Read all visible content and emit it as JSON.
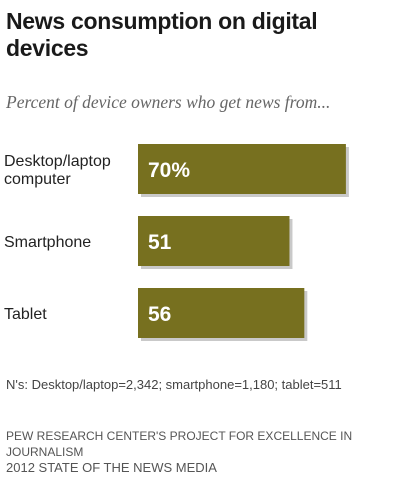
{
  "chart_data": {
    "type": "bar",
    "orientation": "horizontal",
    "title": "News consumption on digital devices",
    "subtitle": "Percent of device owners who get news from...",
    "categories": [
      "Desktop/laptop computer",
      "Smartphone",
      "Tablet"
    ],
    "category_lines": [
      [
        "Desktop/laptop",
        "computer"
      ],
      [
        "Smartphone"
      ],
      [
        "Tablet"
      ]
    ],
    "values": [
      70,
      51,
      56
    ],
    "data_labels": [
      "70%",
      "51",
      "56"
    ],
    "xlim": [
      0,
      100
    ],
    "grid": false,
    "legend": "none",
    "bar_color": "#77701f",
    "label_color": "#ffffff"
  },
  "note": "N's: Desktop/laptop=2,342; smartphone=1,180; tablet=511",
  "source": {
    "line1": "PEW RESEARCH CENTER'S PROJECT FOR EXCELLENCE IN JOURNALISM",
    "line2": "2012 STATE OF THE NEWS MEDIA"
  }
}
